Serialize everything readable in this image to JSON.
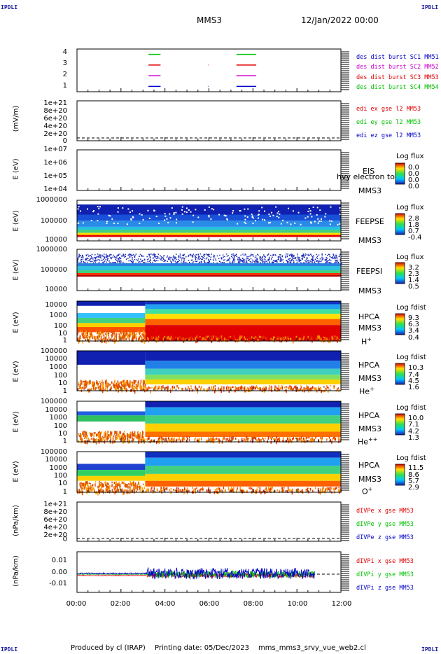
{
  "corner_label": "IPDLI",
  "header": {
    "spacecraft": "MMS3",
    "datetime": "12/Jan/2022 00:00"
  },
  "footer": {
    "produced": "Produced by cl (IRAP)",
    "printing": "Printing date: 05/Dec/2023",
    "file": "mms_mms3_srvy_vue_web2.cl"
  },
  "x_axis": {
    "ticks": [
      "00:00",
      "02:00",
      "04:00",
      "06:00",
      "08:00",
      "10:00",
      "12:00"
    ],
    "range_hours": [
      0,
      12
    ]
  },
  "colors": {
    "red": "#e00000",
    "magenta": "#d000d0",
    "blue": "#0000c8",
    "green": "#00c000"
  },
  "chart_data": [
    {
      "type": "line",
      "panel": "burst availability",
      "ylim": [
        0.5,
        4.5
      ],
      "yticks": [
        "4",
        "3",
        "2",
        "1"
      ],
      "legend": [
        {
          "label": "des dist burst SC1 MM51",
          "color": "#0000c8"
        },
        {
          "label": "des dist burst SC2 MM52",
          "color": "#d000d0"
        },
        {
          "label": "des dist burst SC3 MM53",
          "color": "#e00000"
        },
        {
          "label": "des dist burst SC4 MM54",
          "color": "#00c000"
        }
      ],
      "series": [
        {
          "level": 4,
          "color": "#00c000",
          "segments": [
            [
              3.25,
              3.8
            ],
            [
              7.25,
              8.15
            ]
          ]
        },
        {
          "level": 3,
          "color": "#e00000",
          "segments": [
            [
              3.25,
              3.8
            ],
            [
              5.95,
              5.97
            ],
            [
              7.25,
              8.15
            ]
          ]
        },
        {
          "level": 2,
          "color": "#d000d0",
          "segments": [
            [
              3.25,
              3.8
            ],
            [
              7.25,
              8.15
            ]
          ]
        },
        {
          "level": 1,
          "color": "#0000c8",
          "segments": [
            [
              3.25,
              3.8
            ],
            [
              5.95,
              5.97
            ],
            [
              7.25,
              8.15
            ]
          ]
        }
      ]
    },
    {
      "type": "line",
      "panel": "EDI electric field",
      "ylabel": "(mV/m)",
      "yticks": [
        "1e+21",
        "8e+20",
        "6e+20",
        "4e+20",
        "2e+20",
        "0"
      ],
      "legend": [
        {
          "label": "edi ex gse l2 MM53",
          "color": "#e00000"
        },
        {
          "label": "edi ey gse l2 MM53",
          "color": "#00c000"
        },
        {
          "label": "edi ez gse l2 MM53",
          "color": "#0000c8"
        }
      ]
    },
    {
      "type": "heatmap",
      "panel": "EIS",
      "ylabel": "E (eV)",
      "yticks": [
        "1e+07",
        "1e+06",
        "1e+05",
        "1e+04"
      ],
      "labels": [
        "EIS",
        "MMS3"
      ],
      "overlap_label": "hvy electron to",
      "colorbar": {
        "title": "Log flux",
        "ticks": [
          "0.0",
          "0.0",
          "0.0",
          "0.0"
        ]
      }
    },
    {
      "type": "heatmap",
      "panel": "FEEPS electrons",
      "ylabel": "E (eV)",
      "yticks": [
        "1000000",
        "100000",
        "10000"
      ],
      "labels": [
        "FEEPSE",
        "MMS3"
      ],
      "colorbar": {
        "title": "Log flux",
        "ticks": [
          "2.8",
          "1.8",
          "0.7",
          "-0.4"
        ]
      }
    },
    {
      "type": "heatmap",
      "panel": "FEEPS ions",
      "ylabel": "E (eV)",
      "yticks": [
        "1000000",
        "100000",
        "10000"
      ],
      "labels": [
        "FEEPSI",
        "MMS3"
      ],
      "colorbar": {
        "title": "Log flux",
        "ticks": [
          "3.2",
          "2.3",
          "1.4",
          "0.5"
        ]
      }
    },
    {
      "type": "heatmap",
      "panel": "HPCA H+",
      "ylabel": "E (eV)",
      "yticks": [
        "10000",
        "1000",
        "100",
        "10",
        "1"
      ],
      "labels": [
        "HPCA",
        "MMS3"
      ],
      "species": "H",
      "charge": "+",
      "colorbar": {
        "title": "Log fdist",
        "ticks": [
          "9.3",
          "6.3",
          "3.4",
          "0.4"
        ]
      }
    },
    {
      "type": "heatmap",
      "panel": "HPCA He+",
      "ylabel": "E (eV)",
      "yticks": [
        "100000",
        "10000",
        "1000",
        "100",
        "10",
        "1"
      ],
      "labels": [
        "HPCA",
        "MMS3"
      ],
      "species": "He",
      "charge": "+",
      "colorbar": {
        "title": "Log fdist",
        "ticks": [
          "10.3",
          "7.4",
          "4.5",
          "1.6"
        ]
      }
    },
    {
      "type": "heatmap",
      "panel": "HPCA He++",
      "ylabel": "E (eV)",
      "yticks": [
        "100000",
        "10000",
        "1000",
        "100",
        "10",
        "1"
      ],
      "labels": [
        "HPCA",
        "MMS3"
      ],
      "species": "He",
      "charge": "++",
      "colorbar": {
        "title": "Log fdist",
        "ticks": [
          "10.0",
          "7.1",
          "4.2",
          "1.3"
        ]
      }
    },
    {
      "type": "heatmap",
      "panel": "HPCA O+",
      "ylabel": "E (eV)",
      "yticks": [
        "100000",
        "10000",
        "1000",
        "100",
        "10",
        "1"
      ],
      "labels": [
        "HPCA",
        "MMS3"
      ],
      "species": "O",
      "charge": "+",
      "colorbar": {
        "title": "Log fdist",
        "ticks": [
          "11.5",
          "8.6",
          "5.7",
          "2.9"
        ]
      }
    },
    {
      "type": "line",
      "panel": "electron pressure gradient",
      "ylabel": "(nPa/km)",
      "yticks": [
        "1e+21",
        "8e+20",
        "6e+20",
        "4e+20",
        "2e+20",
        "0"
      ],
      "legend": [
        {
          "label": "dIVPe x gse MM53",
          "color": "#e00000"
        },
        {
          "label": "dIVPe y gse MM53",
          "color": "#00c000"
        },
        {
          "label": "dIVPe z gse MM53",
          "color": "#0000c8"
        }
      ]
    },
    {
      "type": "line",
      "panel": "ion pressure gradient",
      "ylabel": "(nPa/km)",
      "ylim": [
        -0.015,
        0.015
      ],
      "yticks": [
        "0.01",
        "0.00",
        "-0.01"
      ],
      "legend": [
        {
          "label": "dIVPi x gse MM53",
          "color": "#e00000"
        },
        {
          "label": "dIVPi y gse MM53",
          "color": "#00c000"
        },
        {
          "label": "dIVPi z gse MM53",
          "color": "#0000c8"
        }
      ]
    }
  ]
}
